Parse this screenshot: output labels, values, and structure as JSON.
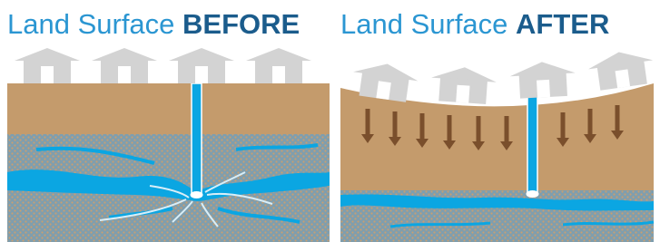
{
  "panels": [
    {
      "title": "Land Surface",
      "emphasis": "BEFORE"
    },
    {
      "title": "Land Surface",
      "emphasis": "AFTER"
    }
  ]
}
